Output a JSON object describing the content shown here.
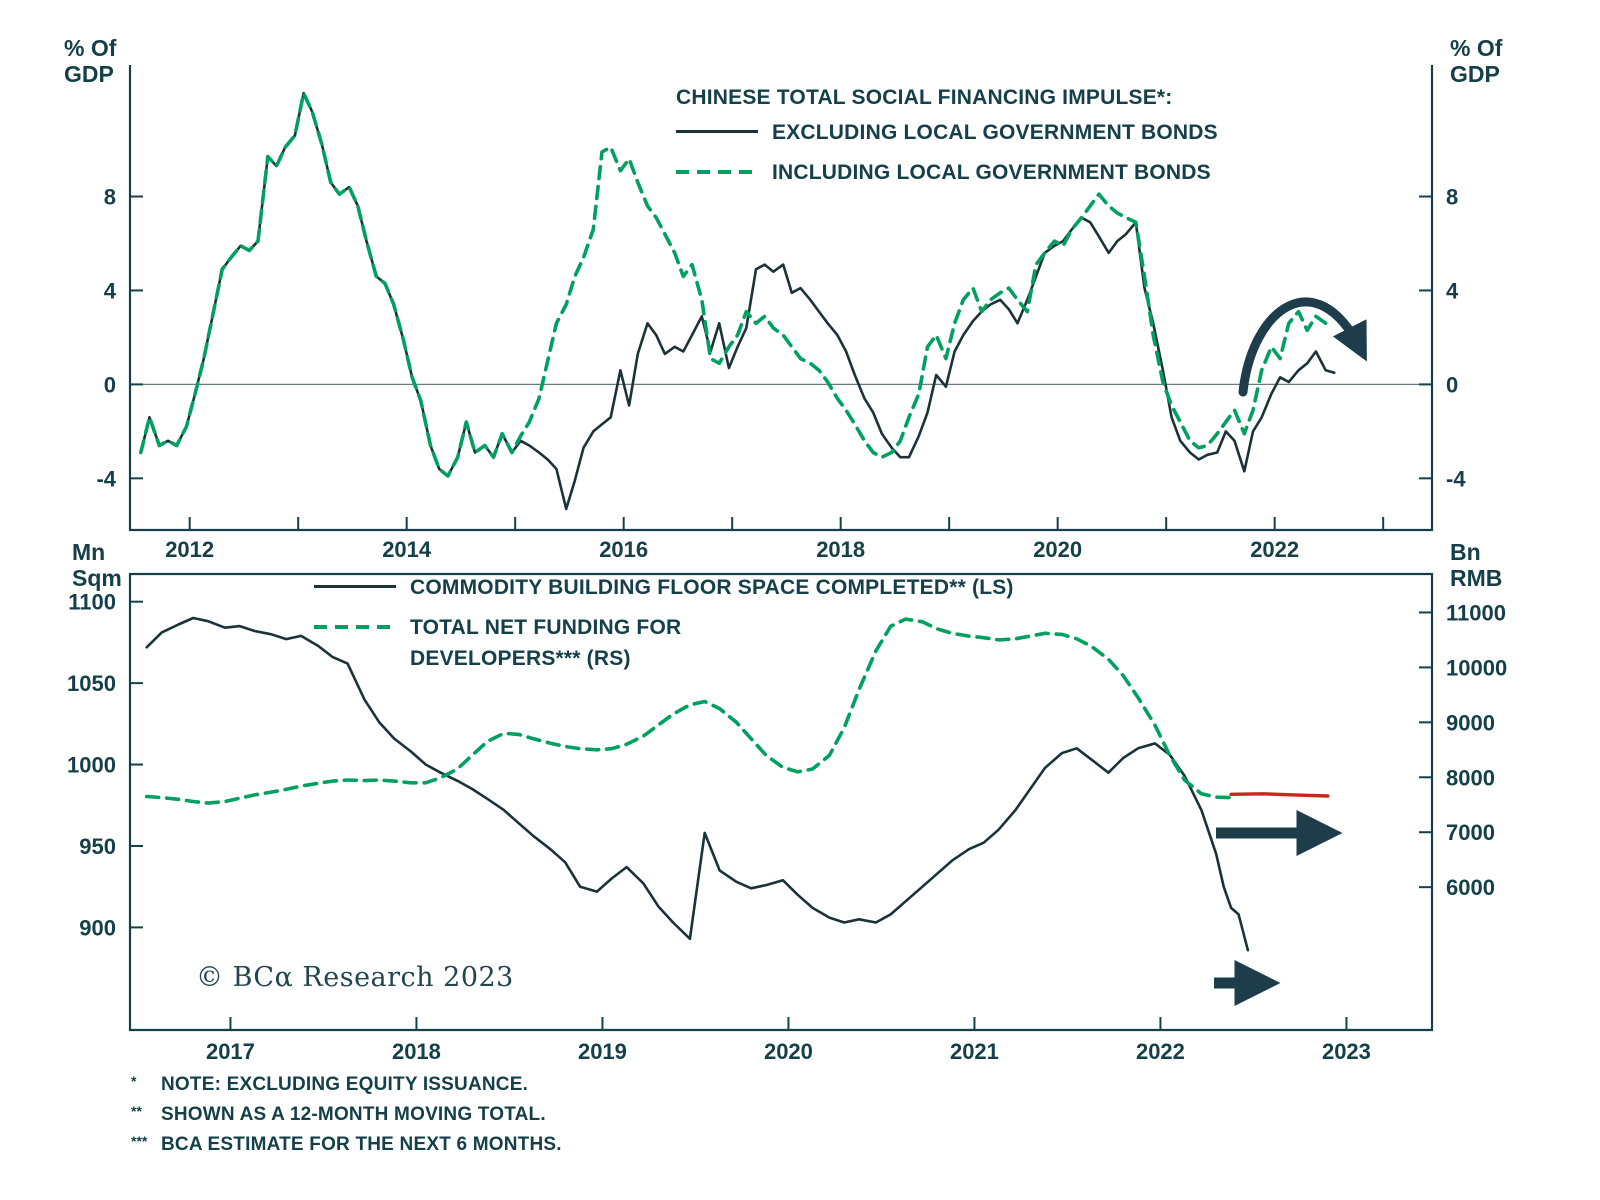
{
  "colors": {
    "ink": "#15404a",
    "line": "#1b3338",
    "green": "#00a160",
    "red": "#c4281f",
    "arrow": "#1e3d4a",
    "zero": "#6b7a7d"
  },
  "copyright": "© BCα Research 2023",
  "footnotes": [
    {
      "marker": "*",
      "text": "NOTE: EXCLUDING EQUITY ISSUANCE."
    },
    {
      "marker": "**",
      "text": "SHOWN AS A 12-MONTH MOVING TOTAL."
    },
    {
      "marker": "***",
      "text": "BCA ESTIMATE FOR THE NEXT 6 MONTHS."
    }
  ],
  "arrows": [
    {
      "chart": "top",
      "shape": "curved-down-right"
    },
    {
      "chart": "bottom",
      "shape": "straight-right-upper"
    },
    {
      "chart": "bottom",
      "shape": "straight-right-lower"
    }
  ],
  "chart_data": [
    {
      "id": "tsf-impulse-chart",
      "type": "line",
      "legend_title": "CHINESE TOTAL SOCIAL FINANCING IMPULSE*:",
      "unit_left": [
        "% Of",
        "GDP"
      ],
      "unit_right": [
        "% Of",
        "GDP"
      ],
      "xlim": [
        2011.45,
        2023.45
      ],
      "ylim_left": [
        -6.2,
        13.6
      ],
      "ylim_right": [
        -6.2,
        13.6
      ],
      "zero_line": 0,
      "xticks": [
        {
          "v": 2012,
          "label": "2012"
        },
        {
          "v": 2013,
          "label": ""
        },
        {
          "v": 2014,
          "label": "2014"
        },
        {
          "v": 2015,
          "label": ""
        },
        {
          "v": 2016,
          "label": "2016"
        },
        {
          "v": 2017,
          "label": ""
        },
        {
          "v": 2018,
          "label": "2018"
        },
        {
          "v": 2019,
          "label": ""
        },
        {
          "v": 2020,
          "label": "2020"
        },
        {
          "v": 2021,
          "label": ""
        },
        {
          "v": 2022,
          "label": "2022"
        },
        {
          "v": 2023,
          "label": ""
        }
      ],
      "yticks_left": [
        {
          "v": -4,
          "label": "-4"
        },
        {
          "v": 0,
          "label": "0"
        },
        {
          "v": 4,
          "label": "4"
        },
        {
          "v": 8,
          "label": "8"
        }
      ],
      "yticks_right": [
        {
          "v": -4,
          "label": "-4"
        },
        {
          "v": 0,
          "label": "0"
        },
        {
          "v": 4,
          "label": "4"
        },
        {
          "v": 8,
          "label": "8"
        }
      ],
      "x": [
        2011.55,
        2011.63,
        2011.72,
        2011.8,
        2011.88,
        2011.97,
        2012.05,
        2012.13,
        2012.22,
        2012.3,
        2012.38,
        2012.47,
        2012.55,
        2012.63,
        2012.72,
        2012.8,
        2012.88,
        2012.97,
        2013.05,
        2013.13,
        2013.22,
        2013.3,
        2013.38,
        2013.47,
        2013.55,
        2013.63,
        2013.72,
        2013.8,
        2013.88,
        2013.97,
        2014.05,
        2014.13,
        2014.22,
        2014.3,
        2014.38,
        2014.47,
        2014.55,
        2014.63,
        2014.72,
        2014.8,
        2014.88,
        2014.97,
        2015.05,
        2015.13,
        2015.22,
        2015.3,
        2015.38,
        2015.47,
        2015.55,
        2015.63,
        2015.72,
        2015.8,
        2015.88,
        2015.97,
        2016.05,
        2016.13,
        2016.22,
        2016.3,
        2016.38,
        2016.47,
        2016.55,
        2016.63,
        2016.72,
        2016.8,
        2016.88,
        2016.97,
        2017.05,
        2017.13,
        2017.22,
        2017.3,
        2017.38,
        2017.47,
        2017.55,
        2017.63,
        2017.72,
        2017.8,
        2017.88,
        2017.97,
        2018.05,
        2018.13,
        2018.22,
        2018.3,
        2018.38,
        2018.47,
        2018.55,
        2018.63,
        2018.72,
        2018.8,
        2018.88,
        2018.97,
        2019.05,
        2019.13,
        2019.22,
        2019.3,
        2019.38,
        2019.47,
        2019.55,
        2019.63,
        2019.72,
        2019.8,
        2019.88,
        2019.97,
        2020.05,
        2020.13,
        2020.22,
        2020.3,
        2020.38,
        2020.47,
        2020.55,
        2020.63,
        2020.72,
        2020.8,
        2020.88,
        2020.97,
        2021.05,
        2021.13,
        2021.22,
        2021.3,
        2021.38,
        2021.47,
        2021.55,
        2021.63,
        2021.72,
        2021.8,
        2021.88,
        2021.97,
        2022.05,
        2022.13,
        2022.22,
        2022.3,
        2022.38,
        2022.47,
        2022.55
      ],
      "series": [
        {
          "name": "EXCLUDING LOCAL GOVERNMENT BONDS",
          "slug": "excluding-lgb-line",
          "axis": "left",
          "color": "#1b3338",
          "dash": null,
          "width": 2.6,
          "values": [
            -2.9,
            -1.4,
            -2.6,
            -2.4,
            -2.6,
            -1.8,
            -0.4,
            1.1,
            3.1,
            4.9,
            5.4,
            5.9,
            5.7,
            6.1,
            9.7,
            9.3,
            10.1,
            10.6,
            12.4,
            11.6,
            10.2,
            8.6,
            8.1,
            8.4,
            7.6,
            6.1,
            4.6,
            4.3,
            3.4,
            1.9,
            0.3,
            -0.7,
            -2.6,
            -3.6,
            -3.9,
            -3.1,
            -1.6,
            -2.9,
            -2.6,
            -3.1,
            -2.1,
            -2.9,
            -2.4,
            -2.6,
            -2.9,
            -3.2,
            -3.6,
            -5.3,
            -4.1,
            -2.7,
            -2.0,
            -1.7,
            -1.4,
            0.6,
            -0.9,
            1.3,
            2.6,
            2.1,
            1.3,
            1.6,
            1.4,
            2.1,
            2.9,
            1.4,
            2.6,
            0.7,
            1.6,
            2.4,
            4.9,
            5.1,
            4.8,
            5.1,
            3.9,
            4.1,
            3.6,
            3.1,
            2.6,
            2.1,
            1.4,
            0.4,
            -0.6,
            -1.2,
            -2.1,
            -2.7,
            -3.1,
            -3.1,
            -2.2,
            -1.2,
            0.4,
            -0.1,
            1.4,
            2.1,
            2.7,
            3.1,
            3.4,
            3.6,
            3.2,
            2.6,
            3.6,
            4.6,
            5.6,
            5.9,
            6.1,
            6.6,
            7.1,
            6.9,
            6.3,
            5.6,
            6.1,
            6.4,
            6.9,
            4.1,
            2.6,
            0.6,
            -1.4,
            -2.4,
            -2.9,
            -3.2,
            -3.0,
            -2.9,
            -2.0,
            -2.4,
            -3.7,
            -2.0,
            -1.4,
            -0.4,
            0.3,
            0.1,
            0.6,
            0.9,
            1.4,
            0.6,
            0.5
          ]
        },
        {
          "name": "INCLUDING LOCAL GOVERNMENT BONDS",
          "slug": "including-lgb-line",
          "axis": "left",
          "color": "#00a160",
          "dash": "12 8",
          "width": 3.6,
          "values": [
            -2.9,
            -1.4,
            -2.6,
            -2.4,
            -2.6,
            -1.8,
            -0.4,
            1.1,
            3.1,
            4.9,
            5.4,
            5.9,
            5.7,
            6.1,
            9.7,
            9.3,
            10.1,
            10.6,
            12.4,
            11.6,
            10.2,
            8.6,
            8.1,
            8.4,
            7.6,
            6.1,
            4.6,
            4.3,
            3.4,
            1.9,
            0.3,
            -0.7,
            -2.6,
            -3.6,
            -3.9,
            -3.1,
            -1.6,
            -2.9,
            -2.6,
            -3.1,
            -2.1,
            -2.9,
            -2.2,
            -1.6,
            -0.6,
            1.0,
            2.6,
            3.4,
            4.6,
            5.4,
            6.6,
            9.9,
            10.1,
            9.1,
            9.6,
            8.6,
            7.6,
            7.1,
            6.4,
            5.6,
            4.6,
            5.1,
            3.6,
            1.1,
            0.9,
            1.6,
            2.1,
            3.1,
            2.6,
            2.9,
            2.4,
            2.1,
            1.6,
            1.1,
            0.9,
            0.6,
            0.1,
            -0.6,
            -1.1,
            -1.7,
            -2.4,
            -2.9,
            -3.1,
            -2.9,
            -2.4,
            -1.4,
            -0.4,
            1.6,
            2.1,
            1.1,
            2.6,
            3.6,
            4.1,
            3.1,
            3.6,
            3.9,
            4.1,
            3.6,
            3.1,
            5.1,
            5.6,
            6.1,
            5.9,
            6.6,
            7.1,
            7.6,
            8.1,
            7.6,
            7.3,
            7.1,
            6.9,
            4.6,
            2.1,
            0.1,
            -0.9,
            -1.6,
            -2.4,
            -2.7,
            -2.6,
            -2.1,
            -1.6,
            -1.1,
            -2.1,
            -1.1,
            0.6,
            1.6,
            1.1,
            2.6,
            3.1,
            2.3,
            2.9,
            2.6
          ]
        }
      ]
    },
    {
      "id": "property-chart",
      "type": "line",
      "legend_title": "",
      "unit_left": [
        "Mn",
        "Sqm"
      ],
      "unit_right": [
        "Bn",
        "RMB"
      ],
      "xlim": [
        2016.46,
        2023.46
      ],
      "ylim_left": [
        837,
        1117
      ],
      "ylim_right": [
        3400,
        11700
      ],
      "zero_line": null,
      "xticks": [
        {
          "v": 2017,
          "label": "2017"
        },
        {
          "v": 2018,
          "label": "2018"
        },
        {
          "v": 2019,
          "label": "2019"
        },
        {
          "v": 2020,
          "label": "2020"
        },
        {
          "v": 2021,
          "label": "2021"
        },
        {
          "v": 2022,
          "label": "2022"
        },
        {
          "v": 2023,
          "label": "2023"
        }
      ],
      "yticks_left": [
        {
          "v": 1100,
          "label": "1100"
        },
        {
          "v": 1050,
          "label": "1050"
        },
        {
          "v": 1000,
          "label": "1000"
        },
        {
          "v": 950,
          "label": "950"
        },
        {
          "v": 900,
          "label": "900"
        }
      ],
      "yticks_right": [
        {
          "v": 11000,
          "label": "11000"
        },
        {
          "v": 10000,
          "label": "10000"
        },
        {
          "v": 9000,
          "label": "9000"
        },
        {
          "v": 8000,
          "label": "8000"
        },
        {
          "v": 7000,
          "label": "7000"
        },
        {
          "v": 6000,
          "label": "6000"
        }
      ],
      "series": [
        {
          "name": "COMMODITY BUILDING FLOOR SPACE COMPLETED** (LS)",
          "slug": "floor-space-line",
          "axis": "left",
          "color": "#1b3338",
          "dash": null,
          "width": 2.6,
          "x": [
            2016.55,
            2016.63,
            2016.72,
            2016.8,
            2016.88,
            2016.97,
            2017.05,
            2017.13,
            2017.22,
            2017.3,
            2017.38,
            2017.47,
            2017.55,
            2017.63,
            2017.72,
            2017.8,
            2017.88,
            2017.97,
            2018.05,
            2018.13,
            2018.22,
            2018.3,
            2018.38,
            2018.47,
            2018.55,
            2018.63,
            2018.72,
            2018.8,
            2018.88,
            2018.97,
            2019.05,
            2019.13,
            2019.22,
            2019.3,
            2019.38,
            2019.47,
            2019.55,
            2019.63,
            2019.72,
            2019.8,
            2019.88,
            2019.97,
            2020.05,
            2020.13,
            2020.22,
            2020.3,
            2020.38,
            2020.47,
            2020.55,
            2020.63,
            2020.72,
            2020.8,
            2020.88,
            2020.97,
            2021.05,
            2021.13,
            2021.22,
            2021.3,
            2021.38,
            2021.47,
            2021.55,
            2021.63,
            2021.72,
            2021.8,
            2021.88,
            2021.97,
            2022.05,
            2022.13,
            2022.22,
            2022.3,
            2022.34,
            2022.38,
            2022.42,
            2022.47
          ],
          "values": [
            1072,
            1081,
            1086,
            1090,
            1088,
            1084,
            1085,
            1082,
            1080,
            1077,
            1079,
            1073,
            1066,
            1062,
            1040,
            1026,
            1016,
            1008,
            1000,
            995,
            990,
            985,
            979,
            972,
            964,
            956,
            948,
            940,
            925,
            922,
            930,
            937,
            927,
            913,
            903,
            893,
            958,
            935,
            928,
            924,
            926,
            929,
            920,
            912,
            906,
            903,
            905,
            903,
            908,
            916,
            925,
            933,
            941,
            948,
            952,
            960,
            972,
            985,
            998,
            1007,
            1010,
            1003,
            995,
            1004,
            1010,
            1013,
            1006,
            993,
            972,
            945,
            925,
            912,
            908,
            886
          ]
        },
        {
          "name": "TOTAL NET FUNDING FOR DEVELOPERS*** (RS)",
          "slug": "net-funding-line",
          "axis": "right",
          "color": "#00a160",
          "dash": "12 8",
          "width": 3.6,
          "x": [
            2016.55,
            2016.63,
            2016.72,
            2016.8,
            2016.88,
            2016.97,
            2017.05,
            2017.13,
            2017.22,
            2017.3,
            2017.38,
            2017.47,
            2017.55,
            2017.63,
            2017.72,
            2017.8,
            2017.88,
            2017.97,
            2018.05,
            2018.13,
            2018.22,
            2018.3,
            2018.38,
            2018.47,
            2018.55,
            2018.63,
            2018.72,
            2018.8,
            2018.88,
            2018.97,
            2019.05,
            2019.13,
            2019.22,
            2019.3,
            2019.38,
            2019.47,
            2019.55,
            2019.63,
            2019.72,
            2019.8,
            2019.88,
            2019.97,
            2020.05,
            2020.13,
            2020.22,
            2020.3,
            2020.38,
            2020.47,
            2020.55,
            2020.63,
            2020.72,
            2020.8,
            2020.88,
            2020.97,
            2021.05,
            2021.13,
            2021.22,
            2021.3,
            2021.38,
            2021.47,
            2021.55,
            2021.63,
            2021.72,
            2021.8,
            2021.88,
            2021.97,
            2022.05,
            2022.13,
            2022.22,
            2022.3,
            2022.38
          ],
          "values": [
            7650,
            7630,
            7600,
            7560,
            7530,
            7560,
            7620,
            7680,
            7730,
            7780,
            7840,
            7890,
            7930,
            7950,
            7940,
            7950,
            7930,
            7900,
            7900,
            7990,
            8150,
            8400,
            8650,
            8800,
            8780,
            8700,
            8620,
            8560,
            8520,
            8500,
            8520,
            8600,
            8750,
            8950,
            9150,
            9320,
            9380,
            9250,
            9000,
            8700,
            8400,
            8180,
            8100,
            8150,
            8400,
            8900,
            9600,
            10300,
            10750,
            10880,
            10830,
            10700,
            10620,
            10570,
            10540,
            10500,
            10520,
            10570,
            10620,
            10600,
            10520,
            10380,
            10150,
            9850,
            9450,
            8950,
            8400,
            7950,
            7700,
            7640,
            7630
          ]
        },
        {
          "name": "BCA ESTIMATE FOR THE NEXT 6 MONTHS",
          "slug": "bca-estimate-line",
          "axis": "right",
          "color": "#c4281f",
          "dash": null,
          "width": 3.4,
          "x": [
            2022.38,
            2022.55,
            2022.72,
            2022.9
          ],
          "values": [
            7690,
            7700,
            7680,
            7660
          ]
        }
      ]
    }
  ]
}
